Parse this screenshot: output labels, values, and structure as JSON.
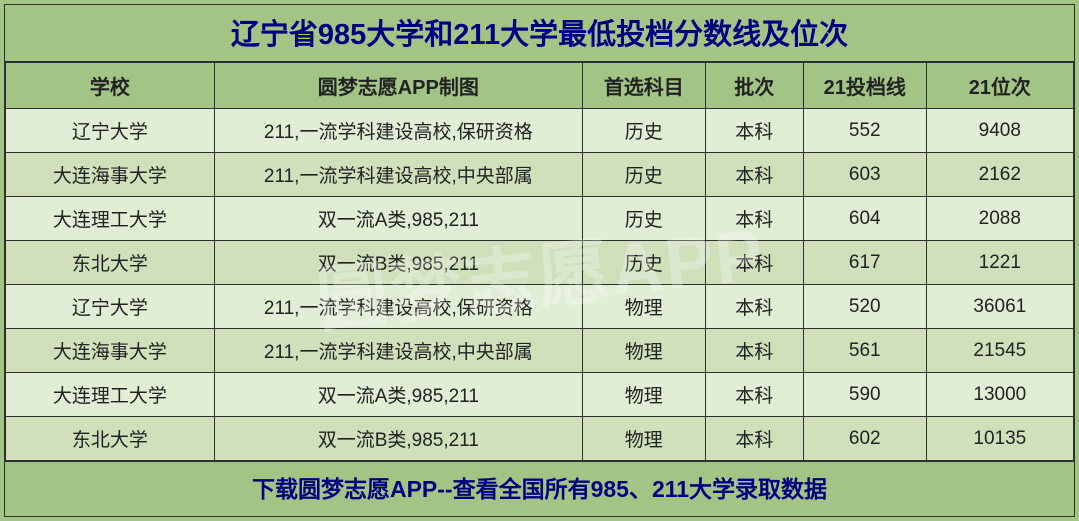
{
  "title": "辽宁省985大学和211大学最低投档分数线及位次",
  "footer": "下载圆梦志愿APP--查看全国所有985、211大学录取数据",
  "watermark": "圆梦志愿APP",
  "table": {
    "columns": [
      "学校",
      "圆梦志愿APP制图",
      "首选科目",
      "批次",
      "21投档线",
      "21位次"
    ],
    "col_widths_pct": [
      17,
      30,
      10,
      8,
      10,
      12
    ],
    "header_bg": "#a2c585",
    "row_bg_odd": "#e1edd4",
    "row_bg_even": "#cfe0bb",
    "border_color": "#2f2f2f",
    "title_color": "#000080",
    "header_fontsize": 20,
    "cell_fontsize": 19,
    "title_fontsize": 29,
    "footer_fontsize": 23,
    "rows": [
      [
        "辽宁大学",
        "211,一流学科建设高校,保研资格",
        "历史",
        "本科",
        "552",
        "9408"
      ],
      [
        "大连海事大学",
        "211,一流学科建设高校,中央部属",
        "历史",
        "本科",
        "603",
        "2162"
      ],
      [
        "大连理工大学",
        "双一流A类,985,211",
        "历史",
        "本科",
        "604",
        "2088"
      ],
      [
        "东北大学",
        "双一流B类,985,211",
        "历史",
        "本科",
        "617",
        "1221"
      ],
      [
        "辽宁大学",
        "211,一流学科建设高校,保研资格",
        "物理",
        "本科",
        "520",
        "36061"
      ],
      [
        "大连海事大学",
        "211,一流学科建设高校,中央部属",
        "物理",
        "本科",
        "561",
        "21545"
      ],
      [
        "大连理工大学",
        "双一流A类,985,211",
        "物理",
        "本科",
        "590",
        "13000"
      ],
      [
        "东北大学",
        "双一流B类,985,211",
        "物理",
        "本科",
        "602",
        "10135"
      ]
    ]
  }
}
